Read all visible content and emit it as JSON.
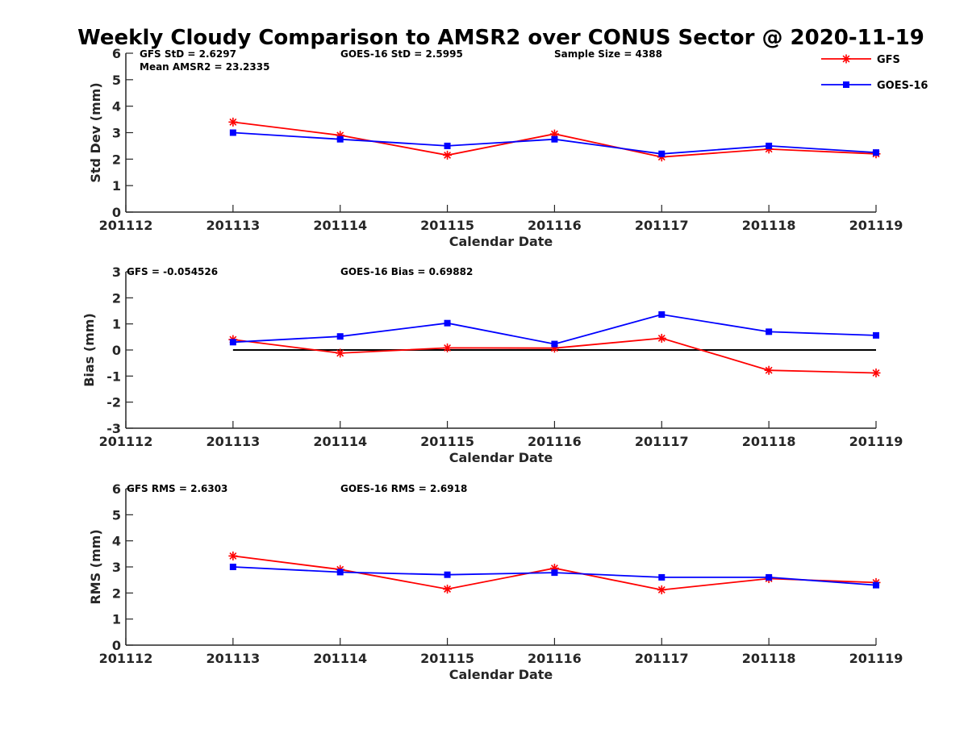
{
  "figure_title": "Weekly Cloudy Comparison to AMSR2 over CONUS Sector @ 2020-11-19",
  "legend": {
    "entries": [
      {
        "label": "GFS",
        "color": "#ff0000",
        "marker": "asterisk"
      },
      {
        "label": "GOES-16",
        "color": "#0000ff",
        "marker": "square"
      }
    ]
  },
  "colors": {
    "gfs": "#ff0000",
    "goes": "#0000ff",
    "axis": "#262626",
    "zero_line": "#000000"
  },
  "chart_data": [
    {
      "type": "line",
      "xlabel": "Calendar Date",
      "ylabel": "Std Dev (mm)",
      "ylim": [
        0,
        6
      ],
      "yticks": [
        0,
        1,
        2,
        3,
        4,
        5,
        6
      ],
      "x_tick_labels": [
        "201112",
        "201113",
        "201114",
        "201115",
        "201116",
        "201117",
        "201118",
        "201119"
      ],
      "x": [
        "201113",
        "201114",
        "201115",
        "201116",
        "201117",
        "201118",
        "201119"
      ],
      "grid": false,
      "series": [
        {
          "name": "GFS",
          "values": [
            3.4,
            2.9,
            2.15,
            2.95,
            2.08,
            2.38,
            2.2
          ]
        },
        {
          "name": "GOES-16",
          "values": [
            3.0,
            2.75,
            2.5,
            2.75,
            2.2,
            2.5,
            2.25
          ]
        }
      ],
      "annotations": [
        "GFS StD = 2.6297",
        "Mean AMSR2 = 23.2335",
        "GOES-16 StD = 2.5995",
        "Sample Size = 4388"
      ]
    },
    {
      "type": "line",
      "xlabel": "Calendar Date",
      "ylabel": "Bias (mm)",
      "ylim": [
        -3,
        3
      ],
      "yticks": [
        -3,
        -2,
        -1,
        0,
        1,
        2,
        3
      ],
      "x_tick_labels": [
        "201112",
        "201113",
        "201114",
        "201115",
        "201116",
        "201117",
        "201118",
        "201119"
      ],
      "x": [
        "201113",
        "201114",
        "201115",
        "201116",
        "201117",
        "201118",
        "201119"
      ],
      "grid": false,
      "reference_line": 0,
      "series": [
        {
          "name": "GFS",
          "values": [
            0.4,
            -0.12,
            0.08,
            0.07,
            0.45,
            -0.78,
            -0.88
          ]
        },
        {
          "name": "GOES-16",
          "values": [
            0.3,
            0.52,
            1.03,
            0.23,
            1.36,
            0.7,
            0.56
          ]
        }
      ],
      "annotations": [
        "GFS = -0.054526",
        "GOES-16 Bias  = 0.69882"
      ]
    },
    {
      "type": "line",
      "xlabel": "Calendar Date",
      "ylabel": "RMS (mm)",
      "ylim": [
        0,
        6
      ],
      "yticks": [
        0,
        1,
        2,
        3,
        4,
        5,
        6
      ],
      "x_tick_labels": [
        "201112",
        "201113",
        "201114",
        "201115",
        "201116",
        "201117",
        "201118",
        "201119"
      ],
      "x": [
        "201113",
        "201114",
        "201115",
        "201116",
        "201117",
        "201118",
        "201119"
      ],
      "grid": false,
      "series": [
        {
          "name": "GFS",
          "values": [
            3.42,
            2.9,
            2.15,
            2.95,
            2.12,
            2.55,
            2.4
          ]
        },
        {
          "name": "GOES-16",
          "values": [
            3.0,
            2.8,
            2.7,
            2.78,
            2.6,
            2.6,
            2.3
          ]
        }
      ],
      "annotations": [
        "GFS RMS = 2.6303",
        "GOES-16 RMS = 2.6918"
      ]
    }
  ]
}
